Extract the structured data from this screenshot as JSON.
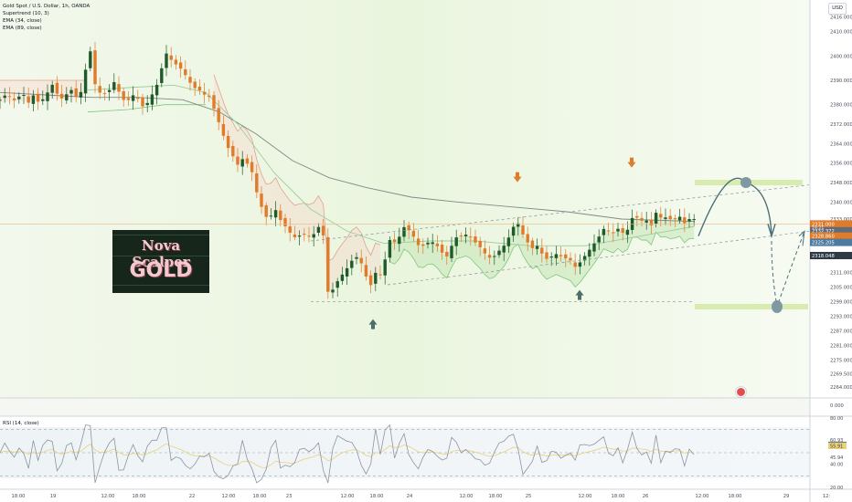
{
  "legend": {
    "symbol": "Gold Spot / U.S. Dollar, 1h, OANDA",
    "supertrend": "Supertrend (10, 3)",
    "ema34": "EMA (34, close)",
    "ema89": "EMA (89, close)"
  },
  "rsi_legend": "RSI (14, close)",
  "currency_button": "USD",
  "logo": {
    "line1": "Nova Scalper",
    "line2": "GOLD"
  },
  "colors": {
    "up": "#1f5a2b",
    "down": "#e07b2a",
    "ema_long": "#7b8c86",
    "ema_short": "#9ccf9c",
    "zone": "#d8ecb0",
    "curve": "#4c6f78",
    "rsi": "#8d95a1"
  },
  "chart_data": [
    {
      "type": "candlestick",
      "title": "Gold Spot / U.S. Dollar, 1h, OANDA",
      "ylim": [
        2261,
        2420
      ],
      "y_ticks": [
        2416.0,
        2410.0,
        2400.0,
        2390.0,
        2380.0,
        2372.0,
        2364.0,
        2356.0,
        2348.0,
        2340.0,
        2333.0,
        2326.0,
        2318.0,
        2311.0,
        2305.0,
        2299.0,
        2293.0,
        2287.0,
        2281.0,
        2275.0,
        2269.5,
        2264.0
      ],
      "x_labels": [
        "18:00",
        "19",
        "12:00",
        "18:00",
        "22",
        "12:00",
        "18:00",
        "23",
        "12:00",
        "18:00",
        "24",
        "12:00",
        "18:00",
        "25",
        "12:00",
        "18:00",
        "26",
        "12:00",
        "18:00",
        "29",
        "12:"
      ],
      "price_labels": [
        "2331.000",
        "2332.372",
        "2328.860",
        "2325.205",
        "2318.048"
      ],
      "price_sublabel": "19:21",
      "zero_label": "0.000",
      "close_path": [
        [
          0,
          2382
        ],
        [
          6,
          2384
        ],
        [
          12,
          2383
        ],
        [
          18,
          2381
        ],
        [
          24,
          2386
        ],
        [
          30,
          2380
        ],
        [
          36,
          2384
        ],
        [
          42,
          2381
        ],
        [
          50,
          2383
        ],
        [
          56,
          2389
        ],
        [
          66,
          2382
        ],
        [
          72,
          2384
        ],
        [
          78,
          2386
        ],
        [
          84,
          2383
        ],
        [
          92,
          2387
        ],
        [
          97,
          2410
        ],
        [
          101,
          2392
        ],
        [
          106,
          2386
        ],
        [
          112,
          2384
        ],
        [
          118,
          2385
        ],
        [
          126,
          2390
        ],
        [
          132,
          2383
        ],
        [
          138,
          2381
        ],
        [
          146,
          2384
        ],
        [
          152,
          2382
        ],
        [
          158,
          2378
        ],
        [
          164,
          2383
        ],
        [
          170,
          2386
        ],
        [
          176,
          2394
        ],
        [
          182,
          2401
        ],
        [
          188,
          2398
        ],
        [
          194,
          2396
        ],
        [
          200,
          2394
        ],
        [
          206,
          2390
        ],
        [
          212,
          2387
        ],
        [
          218,
          2386
        ],
        [
          224,
          2384
        ],
        [
          230,
          2383
        ],
        [
          236,
          2376
        ],
        [
          242,
          2370
        ],
        [
          248,
          2363
        ],
        [
          254,
          2360
        ],
        [
          258,
          2354
        ],
        [
          264,
          2358
        ],
        [
          270,
          2356
        ],
        [
          276,
          2352
        ],
        [
          282,
          2342
        ],
        [
          288,
          2336
        ],
        [
          294,
          2332
        ],
        [
          300,
          2338
        ],
        [
          306,
          2333
        ],
        [
          312,
          2330
        ],
        [
          318,
          2327
        ],
        [
          324,
          2325
        ],
        [
          330,
          2327
        ],
        [
          336,
          2326
        ],
        [
          342,
          2326
        ],
        [
          348,
          2330
        ],
        [
          354,
          2326
        ],
        [
          358,
          2303
        ],
        [
          364,
          2304
        ],
        [
          370,
          2308
        ],
        [
          376,
          2311
        ],
        [
          382,
          2314
        ],
        [
          388,
          2318
        ],
        [
          394,
          2316
        ],
        [
          400,
          2310
        ],
        [
          404,
          2304
        ],
        [
          410,
          2311
        ],
        [
          418,
          2310
        ],
        [
          424,
          2322
        ],
        [
          428,
          2326
        ],
        [
          434,
          2322
        ],
        [
          440,
          2330
        ],
        [
          446,
          2329
        ],
        [
          452,
          2326
        ],
        [
          458,
          2322
        ],
        [
          464,
          2322
        ],
        [
          470,
          2324
        ],
        [
          476,
          2323
        ],
        [
          482,
          2320
        ],
        [
          488,
          2317
        ],
        [
          494,
          2322
        ],
        [
          500,
          2326
        ],
        [
          506,
          2326
        ],
        [
          512,
          2327
        ],
        [
          518,
          2324
        ],
        [
          524,
          2322
        ],
        [
          530,
          2319
        ],
        [
          536,
          2317
        ],
        [
          542,
          2318
        ],
        [
          548,
          2321
        ],
        [
          554,
          2323
        ],
        [
          560,
          2329
        ],
        [
          566,
          2332
        ],
        [
          570,
          2328
        ],
        [
          576,
          2324
        ],
        [
          582,
          2321
        ],
        [
          588,
          2322
        ],
        [
          594,
          2318
        ],
        [
          600,
          2316
        ],
        [
          606,
          2319
        ],
        [
          612,
          2318
        ],
        [
          618,
          2317
        ],
        [
          624,
          2316
        ],
        [
          630,
          2313
        ],
        [
          636,
          2316
        ],
        [
          642,
          2319
        ],
        [
          648,
          2322
        ],
        [
          654,
          2325
        ],
        [
          660,
          2329
        ],
        [
          666,
          2328
        ],
        [
          672,
          2327
        ],
        [
          678,
          2330
        ],
        [
          684,
          2325
        ],
        [
          688,
          2331
        ],
        [
          694,
          2335
        ],
        [
          700,
          2332
        ],
        [
          706,
          2333
        ],
        [
          712,
          2330
        ],
        [
          718,
          2336
        ],
        [
          724,
          2333
        ],
        [
          730,
          2334
        ],
        [
          736,
          2332
        ],
        [
          742,
          2335
        ],
        [
          748,
          2331
        ],
        [
          754,
          2333
        ],
        [
          760,
          2333
        ]
      ],
      "ema_long": [
        [
          0,
          2385
        ],
        [
          50,
          2384
        ],
        [
          100,
          2383
        ],
        [
          150,
          2383
        ],
        [
          200,
          2382
        ],
        [
          240,
          2377
        ],
        [
          280,
          2368
        ],
        [
          320,
          2357
        ],
        [
          360,
          2350
        ],
        [
          400,
          2346
        ],
        [
          450,
          2342
        ],
        [
          500,
          2340
        ],
        [
          560,
          2338
        ],
        [
          620,
          2336
        ],
        [
          680,
          2333
        ],
        [
          760,
          2332
        ]
      ],
      "ema_short": [
        [
          96,
          2386
        ],
        [
          140,
          2387
        ],
        [
          190,
          2388
        ],
        [
          225,
          2385
        ],
        [
          260,
          2372
        ],
        [
          300,
          2352
        ],
        [
          340,
          2337
        ],
        [
          380,
          2328
        ],
        [
          420,
          2323
        ],
        [
          470,
          2324
        ],
        [
          520,
          2324
        ],
        [
          580,
          2322
        ],
        [
          640,
          2322
        ],
        [
          700,
          2326
        ],
        [
          760,
          2330
        ]
      ],
      "markers": [
        {
          "kind": "down-arrow",
          "x": 566,
          "y": 2350
        },
        {
          "kind": "down-arrow",
          "x": 691,
          "y": 2356
        },
        {
          "kind": "up-arrow",
          "x": 408,
          "y": 2290
        },
        {
          "kind": "up-arrow",
          "x": 634,
          "y": 2302
        }
      ],
      "zones": [
        {
          "x0": 760,
          "x1": 878,
          "y": 2348
        },
        {
          "x0": 760,
          "x1": 884,
          "y": 2297
        }
      ],
      "projection_points": [
        [
          816,
          2348
        ],
        [
          850,
          2297
        ]
      ]
    },
    {
      "type": "line",
      "title": "RSI (14, close)",
      "ylim": [
        20,
        80
      ],
      "y_ticks": [
        80.0,
        60.93,
        56.77,
        55.91,
        45.94,
        40.0,
        20.0
      ],
      "hlines": [
        70,
        50,
        30
      ]
    }
  ]
}
